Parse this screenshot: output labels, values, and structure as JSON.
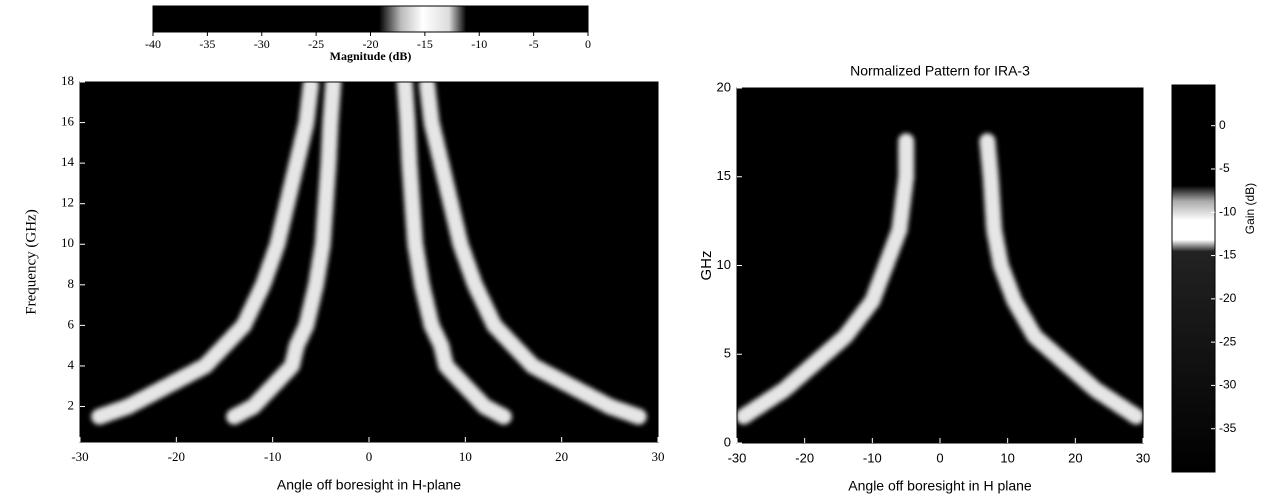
{
  "chart_data": [
    {
      "type": "heatmap",
      "xlabel": "Angle off boresight in H-plane",
      "ylabel": "Frequency (GHz)",
      "colorbar_label": "Magnitude (dB)",
      "xlim": [
        -30,
        30
      ],
      "xticks": [
        -30,
        -20,
        -10,
        0,
        10,
        20,
        30
      ],
      "ylim": [
        0.25,
        18
      ],
      "yticks": [
        2,
        4,
        6,
        8,
        10,
        12,
        14,
        16,
        18
      ],
      "clim": [
        -40,
        0
      ],
      "cticks": [
        -40,
        -35,
        -30,
        -25,
        -20,
        -15,
        -10,
        -5,
        0
      ],
      "x": [
        1.5,
        2,
        3,
        4,
        5,
        6,
        8,
        10,
        12,
        14,
        16,
        18
      ],
      "series": [
        {
          "color": "#ffffff",
          "values": [
            14,
            12,
            10,
            8,
            7.5,
            6.5,
            5.5,
            4.8,
            4.5,
            4.2,
            4,
            3.7
          ]
        },
        {
          "color": "#ffffff",
          "values": [
            -14,
            -12,
            -10,
            -8,
            -7.5,
            -6.5,
            -5.5,
            -4.8,
            -4.5,
            -4.2,
            -4,
            -3.7
          ]
        },
        {
          "color": "#ffffff",
          "values": [
            28,
            25,
            21,
            17,
            15,
            13,
            11,
            9.5,
            8.5,
            7.5,
            6.5,
            6
          ]
        },
        {
          "color": "#ffffff",
          "values": [
            -28,
            -25,
            -21,
            -17,
            -15,
            -13,
            -11,
            -9.5,
            -8.5,
            -7.5,
            -6.5,
            -6
          ]
        }
      ]
    },
    {
      "type": "heatmap",
      "title": "Normalized Pattern for IRA-3",
      "xlabel": "Angle off boresight in H plane",
      "ylabel": "GHz",
      "colorbar_label": "Gain (dB)",
      "xlim": [
        -30,
        30
      ],
      "xticks": [
        -30,
        -20,
        -10,
        0,
        10,
        20,
        30
      ],
      "ylim": [
        0,
        20
      ],
      "yticks": [
        0,
        5,
        10,
        15,
        20
      ],
      "clim": [
        -40,
        4.7
      ],
      "cticks": [
        0,
        -5,
        -10,
        -15,
        -20,
        -25,
        -30,
        -35
      ],
      "x": [
        1.5,
        2,
        3,
        4,
        5,
        6,
        8,
        10,
        12,
        15,
        17
      ],
      "series": [
        {
          "color": "#ffffff",
          "values": [
            29,
            27,
            23,
            20,
            17,
            14,
            11,
            9,
            8,
            7.5,
            7
          ]
        },
        {
          "color": "#ffffff",
          "values": [
            -29,
            -27,
            -23,
            -20,
            -17,
            -14,
            -10,
            -8,
            -6,
            -5,
            -5
          ]
        }
      ]
    }
  ]
}
